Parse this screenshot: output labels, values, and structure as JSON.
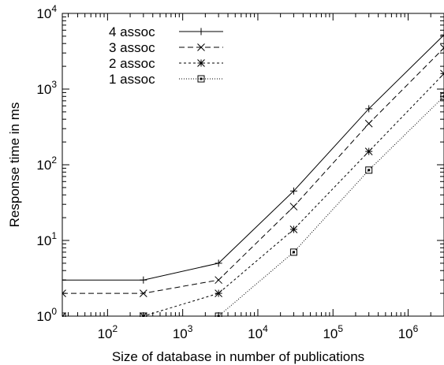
{
  "chart_data": {
    "type": "line",
    "title": "",
    "xlabel": "Size of database in number of publications",
    "ylabel": "Response time in ms",
    "x_scale": "log",
    "y_scale": "log",
    "xlim": [
      25,
      3000000
    ],
    "ylim": [
      1,
      10000
    ],
    "x_ticks": [
      {
        "value": 100,
        "base": "10",
        "exp": "2"
      },
      {
        "value": 1000,
        "base": "10",
        "exp": "3"
      },
      {
        "value": 10000,
        "base": "10",
        "exp": "4"
      },
      {
        "value": 100000,
        "base": "10",
        "exp": "5"
      },
      {
        "value": 1000000,
        "base": "10",
        "exp": "6"
      }
    ],
    "y_ticks": [
      {
        "value": 1,
        "base": "10",
        "exp": "0"
      },
      {
        "value": 10,
        "base": "10",
        "exp": "1"
      },
      {
        "value": 100,
        "base": "10",
        "exp": "2"
      },
      {
        "value": 1000,
        "base": "10",
        "exp": "3"
      },
      {
        "value": 10000,
        "base": "10",
        "exp": "4"
      }
    ],
    "legend_position": "top-left",
    "grid": false,
    "series": [
      {
        "name": "4 assoc",
        "marker": "plus",
        "dash": "",
        "x": [
          25,
          300,
          3000,
          30000,
          300000,
          3000000
        ],
        "y": [
          3,
          3,
          5,
          45,
          550,
          5200
        ]
      },
      {
        "name": "3 assoc",
        "marker": "cross",
        "dash": "7,4",
        "x": [
          25,
          300,
          3000,
          30000,
          300000,
          3000000
        ],
        "y": [
          2,
          2,
          3,
          28,
          350,
          3500
        ]
      },
      {
        "name": "2 assoc",
        "marker": "star",
        "dash": "3,3",
        "x": [
          25,
          300,
          3000,
          30000,
          300000,
          3000000
        ],
        "y": [
          1,
          1,
          2,
          14,
          150,
          1600
        ]
      },
      {
        "name": "1 assoc",
        "marker": "square",
        "dash": "1,2",
        "x": [
          25,
          300,
          3000,
          30000,
          300000,
          3000000
        ],
        "y": [
          1,
          1,
          1,
          7,
          85,
          800
        ]
      }
    ]
  }
}
